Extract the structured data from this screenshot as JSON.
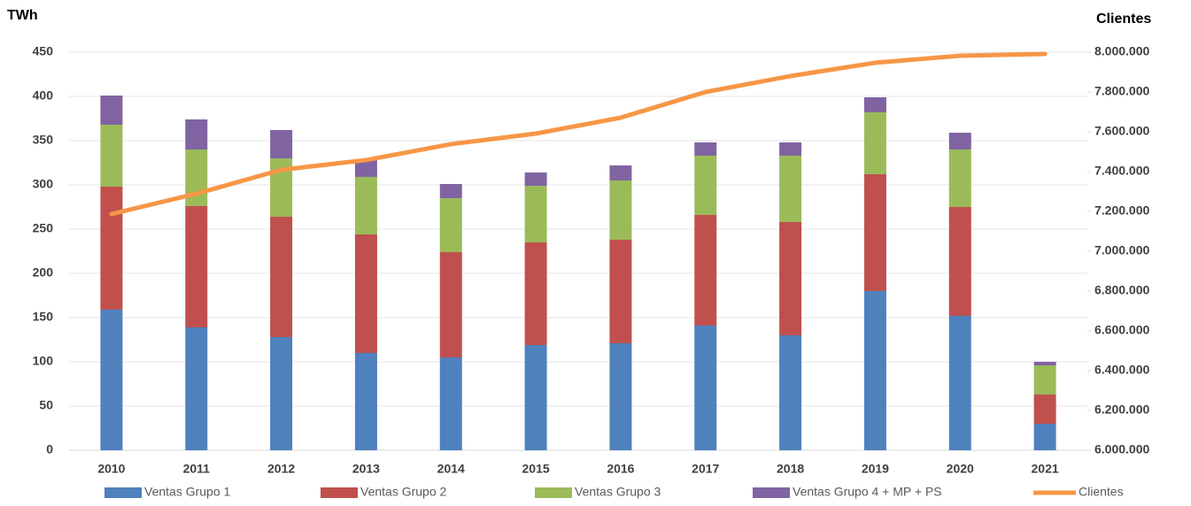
{
  "chart_data": {
    "type": "bar",
    "stacked": true,
    "y_axis_label": "TWh",
    "y2_axis_label": "Clientes",
    "categories": [
      "2010",
      "2011",
      "2012",
      "2013",
      "2014",
      "2015",
      "2016",
      "2017",
      "2018",
      "2019",
      "2020",
      "2021"
    ],
    "series": [
      {
        "name": "Ventas Grupo 1",
        "color": "#4f81bd",
        "values": [
          159,
          139,
          128,
          110,
          105,
          119,
          121,
          141,
          130,
          180,
          152,
          30
        ]
      },
      {
        "name": "Ventas Grupo 2",
        "color": "#c0504d",
        "values": [
          139,
          137,
          136,
          134,
          119,
          116,
          117,
          125,
          128,
          132,
          123,
          33
        ]
      },
      {
        "name": "Ventas Grupo 3",
        "color": "#9bbb59",
        "values": [
          70,
          64,
          66,
          65,
          61,
          64,
          67,
          67,
          75,
          70,
          65,
          33
        ]
      },
      {
        "name": "Ventas Grupo 4 + MP + PS",
        "color": "#8064a2",
        "values": [
          33,
          34,
          32,
          20,
          16,
          15,
          17,
          15,
          15,
          17,
          19,
          4
        ]
      },
      {
        "name": "Clientes",
        "color": "#f79646",
        "type": "line",
        "axis": "y2",
        "values": [
          7187000,
          7289000,
          7409000,
          7458000,
          7538000,
          7591000,
          7671000,
          7800000,
          7880000,
          7947000,
          7982000,
          7991000
        ]
      }
    ],
    "ylim": [
      0,
      450
    ],
    "yticks": [
      0,
      50,
      100,
      150,
      200,
      250,
      300,
      350,
      400,
      450
    ],
    "y2lim": [
      6000000,
      8000000
    ],
    "y2ticks": [
      {
        "value": 6000000,
        "label": "6.000.000"
      },
      {
        "value": 6200000,
        "label": "6.200.000"
      },
      {
        "value": 6400000,
        "label": "6.400.000"
      },
      {
        "value": 6600000,
        "label": "6.600.000"
      },
      {
        "value": 6800000,
        "label": "6.800.000"
      },
      {
        "value": 7000000,
        "label": "7.000.000"
      },
      {
        "value": 7200000,
        "label": "7.200.000"
      },
      {
        "value": 7400000,
        "label": "7.400.000"
      },
      {
        "value": 7600000,
        "label": "7.600.000"
      },
      {
        "value": 7800000,
        "label": "7.800.000"
      },
      {
        "value": 8000000,
        "label": "8.000.000"
      }
    ],
    "grid": true,
    "legend": "bottom"
  }
}
